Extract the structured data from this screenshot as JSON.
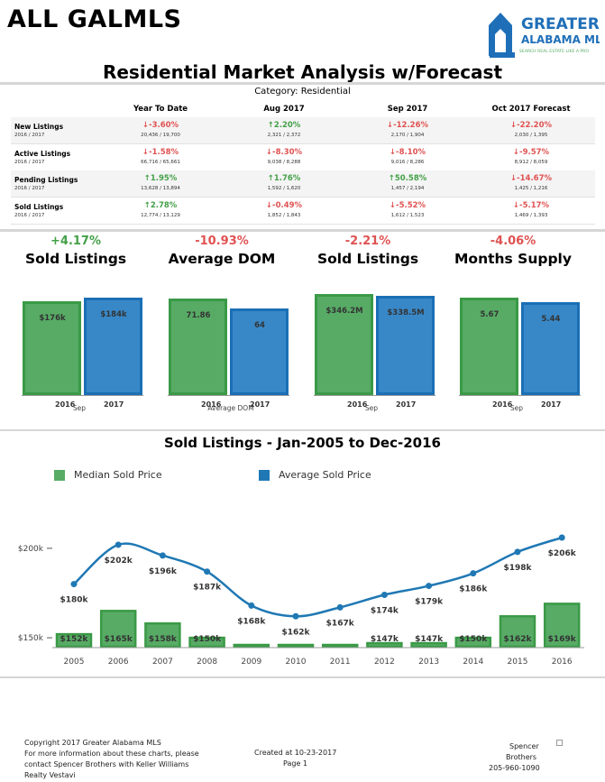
{
  "header": {
    "brand": "ALL GALMLS",
    "logo_line1": "GREATER",
    "logo_line2": "ALABAMA MLS",
    "logo_tagline": "SEARCH REAL ESTATE LIKE A PRO",
    "title": "Residential Market Analysis w/Forecast",
    "category": "Category: Residential"
  },
  "metrics_table": {
    "columns": [
      "Year To Date",
      "Aug 2017",
      "Sep 2017",
      "Oct 2017 Forecast"
    ],
    "rows": [
      {
        "name": "New Listings",
        "sub": "2016 / 2017",
        "cells": [
          {
            "pct": "-3.60%",
            "dir": "down",
            "counts": "20,436 / 19,700"
          },
          {
            "pct": "2.20%",
            "dir": "up",
            "counts": "2,321 / 2,372"
          },
          {
            "pct": "-12.26%",
            "dir": "down",
            "counts": "2,170 / 1,904"
          },
          {
            "pct": "-22.20%",
            "dir": "down",
            "counts": "2,030 / 1,395"
          }
        ]
      },
      {
        "name": "Active Listings",
        "sub": "2016 / 2017",
        "cells": [
          {
            "pct": "-1.58%",
            "dir": "down",
            "counts": "66,716 / 65,661"
          },
          {
            "pct": "-8.30%",
            "dir": "down",
            "counts": "9,038 / 8,288"
          },
          {
            "pct": "-8.10%",
            "dir": "down",
            "counts": "9,016 / 8,286"
          },
          {
            "pct": "-9.57%",
            "dir": "down",
            "counts": "8,912 / 8,059"
          }
        ]
      },
      {
        "name": "Pending Listings",
        "sub": "2016 / 2017",
        "cells": [
          {
            "pct": "1.95%",
            "dir": "up",
            "counts": "13,628 / 13,894"
          },
          {
            "pct": "1.76%",
            "dir": "up",
            "counts": "1,592 / 1,620"
          },
          {
            "pct": "50.58%",
            "dir": "up",
            "counts": "1,457 / 2,194"
          },
          {
            "pct": "-14.67%",
            "dir": "down",
            "counts": "1,425 / 1,216"
          }
        ]
      },
      {
        "name": "Sold Listings",
        "sub": "2016 / 2017",
        "cells": [
          {
            "pct": "2.78%",
            "dir": "up",
            "counts": "12,774 / 13,129"
          },
          {
            "pct": "-0.49%",
            "dir": "down",
            "counts": "1,852 / 1,843"
          },
          {
            "pct": "-5.52%",
            "dir": "down",
            "counts": "1,612 / 1,523"
          },
          {
            "pct": "-5.17%",
            "dir": "down",
            "counts": "1,469 / 1,393"
          }
        ]
      }
    ]
  },
  "chart_data": [
    {
      "type": "bar",
      "title": "Sold Listings",
      "change": "+4.17%",
      "change_dir": "up",
      "categories": [
        "2016",
        "2017"
      ],
      "values": [
        176,
        184
      ],
      "value_labels": [
        "$176k",
        "$184k"
      ],
      "ylim": [
        0,
        190
      ],
      "xlabel": "Sep"
    },
    {
      "type": "bar",
      "title": "Average DOM",
      "change": "-10.93%",
      "change_dir": "down",
      "categories": [
        "2016",
        "2017"
      ],
      "values": [
        71.86,
        64
      ],
      "value_labels": [
        "71.86",
        "64"
      ],
      "ylim": [
        0,
        75
      ],
      "xlabel": "Average DOM"
    },
    {
      "type": "bar",
      "title": "Sold Listings",
      "change": "-2.21%",
      "change_dir": "down",
      "categories": [
        "2016",
        "2017"
      ],
      "values": [
        346.2,
        338.5
      ],
      "value_labels": [
        "$346.2M",
        "$338.5M"
      ],
      "ylim": [
        0,
        346.2
      ],
      "xlabel": "Sep"
    },
    {
      "type": "bar",
      "title": "Months Supply",
      "change": "-4.06%",
      "change_dir": "down",
      "categories": [
        "2016",
        "2017"
      ],
      "values": [
        5.67,
        5.44
      ],
      "value_labels": [
        "5.67",
        "5.44"
      ],
      "ylim": [
        0,
        5.9
      ],
      "xlabel": "Sep"
    },
    {
      "type": "bar+line",
      "title": "Sold Listings - Jan-2005 to Dec-2016",
      "categories": [
        "2005",
        "2006",
        "2007",
        "2008",
        "2009",
        "2010",
        "2011",
        "2012",
        "2013",
        "2014",
        "2015",
        "2016"
      ],
      "y_ticks": [
        "$150k",
        "$200k"
      ],
      "ylim": [
        145,
        205
      ],
      "series": [
        {
          "name": "Median Sold Price",
          "kind": "bar",
          "color": "#57ab65",
          "values": [
            152,
            165,
            158,
            150,
            145,
            143,
            143,
            147,
            147,
            150,
            162,
            169
          ],
          "labels": [
            "$152k",
            "$165k",
            "$158k",
            "$150k",
            "",
            "",
            "",
            "$147k",
            "$147k",
            "$150k",
            "$162k",
            "$169k"
          ]
        },
        {
          "name": "Average Sold Price",
          "kind": "line",
          "color": "#1f78b4",
          "values": [
            180,
            202,
            196,
            187,
            168,
            162,
            167,
            174,
            179,
            186,
            198,
            206
          ],
          "labels": [
            "$180k",
            "$202k",
            "$196k",
            "$187k",
            "$168k",
            "$162k",
            "$167k",
            "$174k",
            "$179k",
            "$186k",
            "$198k",
            "$206k"
          ]
        }
      ]
    }
  ],
  "footer": {
    "copyright": "Copyright 2017 Greater Alabama MLS",
    "info1": "For more information about these charts, please",
    "info2": "contact Spencer Brothers with Keller Williams",
    "info3": "Realty Vestavi",
    "created": "Created at 10-23-2017",
    "page": "Page 1",
    "agent1": "Spencer",
    "agent2": "Brothers",
    "phone": "205-960-1090"
  }
}
